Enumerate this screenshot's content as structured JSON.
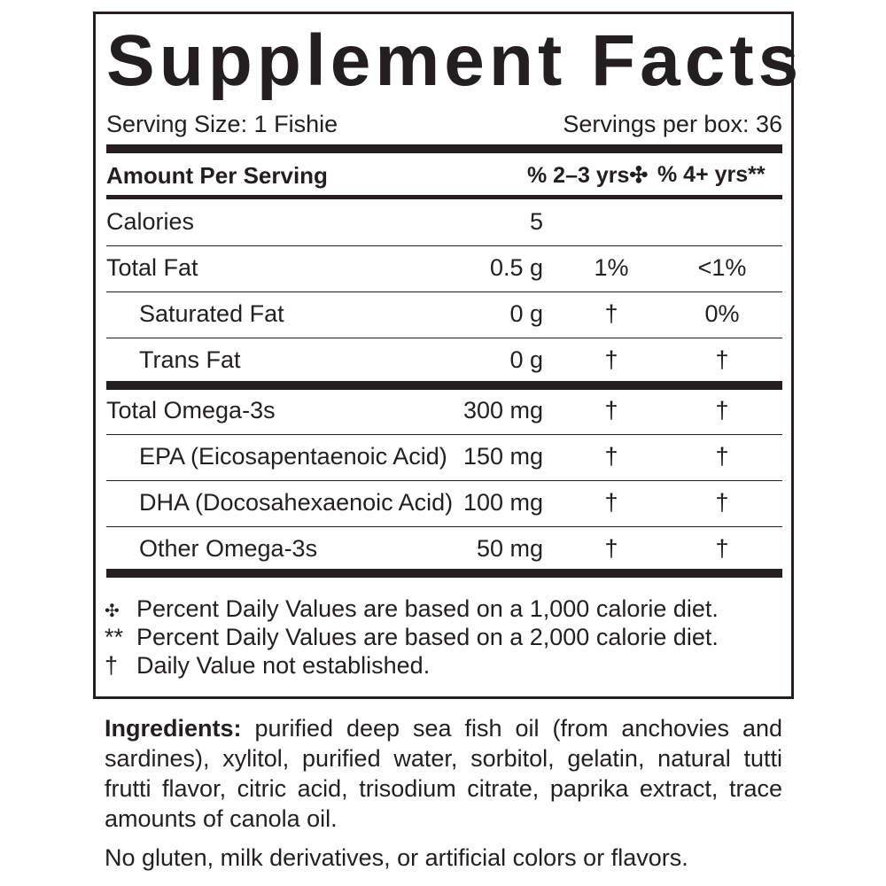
{
  "title": "Supplement Facts",
  "serving_size": "Serving Size: 1 Fishie",
  "servings_per_box": "Servings per box: 36",
  "header": {
    "amount_label": "Amount Per Serving",
    "col1": "% 2–3 yrs✣",
    "col2": "% 4+ yrs**"
  },
  "rows": [
    {
      "label": "Calories",
      "amount": "5",
      "dv1": "",
      "dv2": ""
    },
    {
      "label": "Total Fat",
      "amount": "0.5 g",
      "dv1": "1%",
      "dv2": "<1%"
    },
    {
      "label": "Saturated Fat",
      "amount": "0 g",
      "dv1": "†",
      "dv2": "0%"
    },
    {
      "label": "Trans Fat",
      "amount": "0 g",
      "dv1": "†",
      "dv2": "†"
    },
    {
      "label": "Total Omega-3s",
      "amount": "300 mg",
      "dv1": "†",
      "dv2": "†"
    },
    {
      "label": "EPA (Eicosapentaenoic Acid)",
      "amount": "150 mg",
      "dv1": "†",
      "dv2": "†"
    },
    {
      "label": "DHA (Docosahexaenoic Acid)",
      "amount": "100 mg",
      "dv1": "†",
      "dv2": "†"
    },
    {
      "label": "Other Omega-3s",
      "amount": "50 mg",
      "dv1": "†",
      "dv2": "†"
    }
  ],
  "footnotes": [
    {
      "symbol": "✣",
      "text": "Percent Daily Values are based on a 1,000 calorie diet."
    },
    {
      "symbol": "**",
      "text": "Percent Daily Values are based on a 2,000 calorie diet."
    },
    {
      "symbol": "†",
      "text": "Daily Value not established."
    }
  ],
  "ingredients": {
    "label": "Ingredients:",
    "text": " purified deep sea fish oil (from anchovies and sardines), xylitol, purified water, sorbitol, gelatin, natural tutti frutti flavor, citric acid, trisodium citrate, paprika extract, trace amounts of canola oil."
  },
  "allergen_note": "No gluten, milk derivatives, or artificial colors or flavors."
}
